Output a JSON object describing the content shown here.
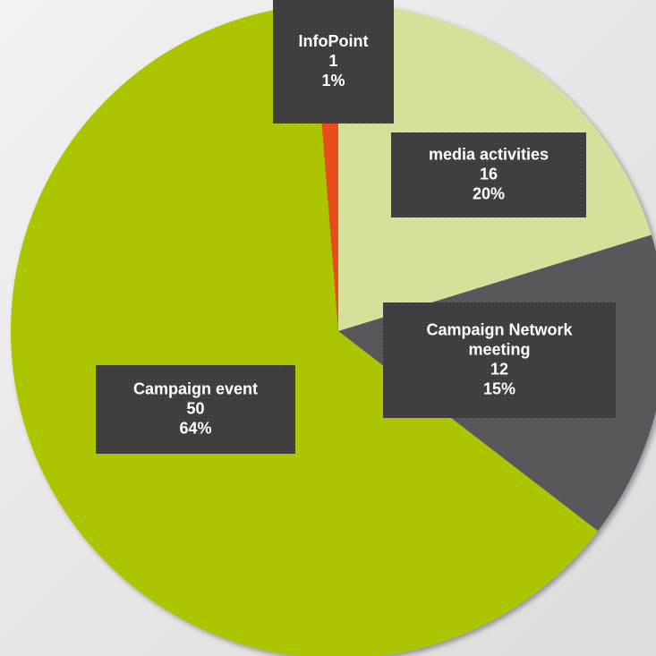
{
  "chart_data": {
    "type": "pie",
    "categories": [
      "media activities",
      "Campaign Network meeting",
      "Campaign event",
      "InfoPoint"
    ],
    "values": [
      16,
      12,
      50,
      1
    ],
    "percent_labels": [
      "20%",
      "15%",
      "64%",
      "1%"
    ],
    "colors": [
      "#d5e09a",
      "#58595b",
      "#adc500",
      "#e84b1c"
    ]
  }
}
